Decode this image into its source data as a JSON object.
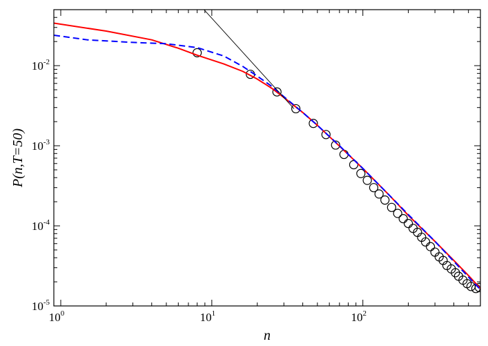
{
  "chart_data": {
    "type": "line",
    "title": "",
    "xlabel": "n",
    "ylabel": "P(n,T=50)",
    "xscale": "log",
    "yscale": "log",
    "xlim": [
      0.9,
      600
    ],
    "ylim": [
      1e-05,
      0.05
    ],
    "grid": false,
    "legend": "none",
    "x_ticks": [
      {
        "value": 1,
        "base": "10",
        "exp": "0"
      },
      {
        "value": 10,
        "base": "10",
        "exp": "1"
      },
      {
        "value": 100,
        "base": "10",
        "exp": "2"
      }
    ],
    "y_ticks": [
      {
        "value": 1e-05,
        "base": "10",
        "exp": "-5"
      },
      {
        "value": 0.0001,
        "base": "10",
        "exp": "-4"
      },
      {
        "value": 0.001,
        "base": "10",
        "exp": "-3"
      },
      {
        "value": 0.01,
        "base": "10",
        "exp": "-2"
      }
    ],
    "series": [
      {
        "style": "circles",
        "color": "#000000",
        "x": [
          8,
          18,
          27,
          36,
          47,
          57,
          66,
          75,
          87,
          97,
          107,
          118,
          128,
          140,
          155,
          170,
          185,
          200,
          215,
          230,
          245,
          260,
          280,
          300,
          320,
          340,
          360,
          385,
          410,
          430,
          460,
          490,
          520,
          560,
          590
        ],
        "y": [
          0.0145,
          0.0078,
          0.0047,
          0.0029,
          0.0019,
          0.00138,
          0.00102,
          0.00078,
          0.00058,
          0.00045,
          0.00037,
          0.0003,
          0.00025,
          0.00021,
          0.00017,
          0.000143,
          0.000123,
          0.000107,
          9.3e-05,
          8.3e-05,
          7.2e-05,
          6.3e-05,
          5.5e-05,
          4.7e-05,
          4.1e-05,
          3.7e-05,
          3.2e-05,
          2.9e-05,
          2.6e-05,
          2.35e-05,
          2.1e-05,
          1.9e-05,
          1.75e-05,
          1.65e-05,
          1.7e-05
        ]
      },
      {
        "style": "solid",
        "color": "#ff0000",
        "x": [
          0.9,
          2,
          4,
          6,
          8,
          12,
          16,
          20,
          25,
          30,
          40,
          50,
          70,
          100,
          150,
          200,
          300,
          400,
          500,
          600
        ],
        "y": [
          0.034,
          0.027,
          0.021,
          0.0165,
          0.0135,
          0.0105,
          0.0085,
          0.0068,
          0.0052,
          0.004,
          0.0026,
          0.0018,
          0.00099,
          0.00052,
          0.00024,
          0.000135,
          6.4e-05,
          3.7e-05,
          2.4e-05,
          1.65e-05
        ]
      },
      {
        "style": "dashed",
        "color": "#0000ff",
        "x": [
          0.9,
          1.5,
          3,
          5,
          8,
          12,
          16,
          20,
          25,
          30,
          40,
          50,
          70,
          100,
          150,
          200,
          300,
          400,
          500,
          600
        ],
        "y": [
          0.024,
          0.021,
          0.0195,
          0.0188,
          0.0168,
          0.0132,
          0.0098,
          0.0074,
          0.0055,
          0.0041,
          0.0026,
          0.0018,
          0.001,
          0.00052,
          0.00024,
          0.000138,
          6.4e-05,
          3.6e-05,
          2.3e-05,
          1.6e-05
        ]
      },
      {
        "style": "thin",
        "color": "#000000",
        "x": [
          8.8,
          35
        ],
        "y": [
          0.051,
          0.0029
        ]
      }
    ]
  }
}
